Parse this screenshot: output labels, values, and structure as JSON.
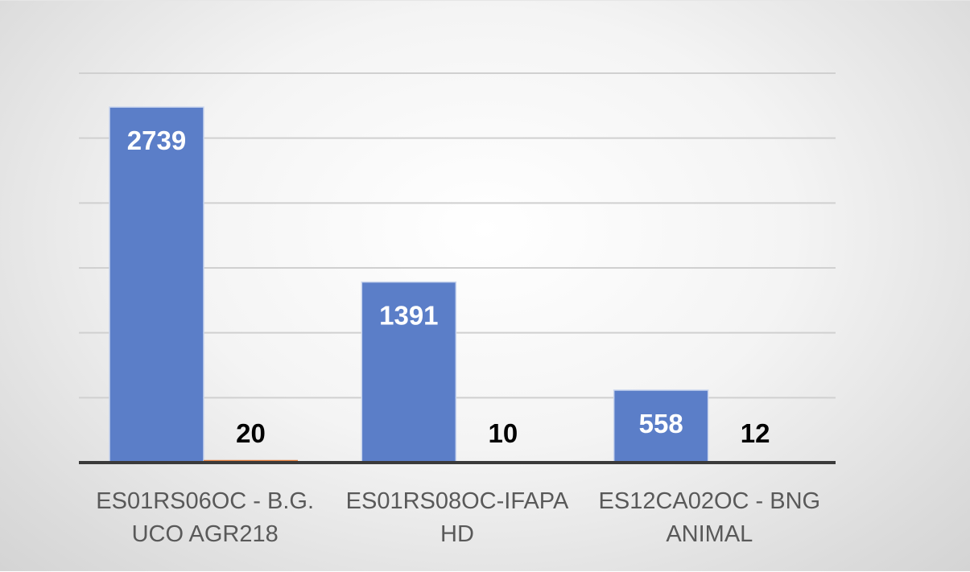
{
  "chart_data": {
    "type": "bar",
    "categories": [
      [
        "ES01RS06OC - B.G.",
        "UCO AGR218"
      ],
      [
        "ES01RS08OC-IFAPA",
        "HD"
      ],
      [
        "ES12CA02OC - BNG",
        "ANIMAL"
      ]
    ],
    "series": [
      {
        "values": [
          2739,
          1391,
          558
        ],
        "color": "#5b7ec8"
      },
      {
        "values": [
          20,
          10,
          12
        ],
        "color": "#e07b39"
      }
    ],
    "ylim": [
      0,
      3000
    ],
    "yticks": [
      0,
      500,
      1000,
      1500,
      2000,
      2500,
      3000
    ],
    "grid": true,
    "data_labels": true,
    "legend": "none",
    "title": "",
    "xlabel": "",
    "ylabel": ""
  }
}
